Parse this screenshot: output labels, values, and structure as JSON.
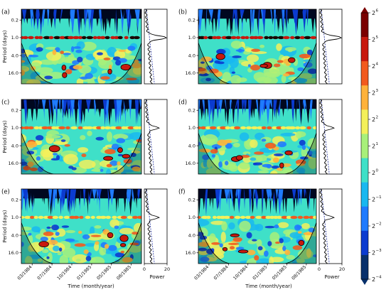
{
  "figure": {
    "ylabel": "Period (days)",
    "xlabel": "Time (month/year)",
    "side_xlabel": "Power"
  },
  "colormap": [
    "#08306b",
    "#0b3bd0",
    "#1f7bff",
    "#19b8f0",
    "#3fe0c8",
    "#a8f07a",
    "#f4f05a",
    "#ffb23a",
    "#f25a1e",
    "#c8190e",
    "#7a0000"
  ],
  "chart_data": [
    {
      "type": "heatmap",
      "panel": "(a)",
      "yticks": [
        "0.2",
        "1.0",
        "4.0",
        "16.0"
      ],
      "ylim_days": [
        0.1,
        30
      ],
      "xticks": [],
      "side": {
        "xticks": [],
        "xlim": [
          0,
          20
        ]
      }
    },
    {
      "type": "heatmap",
      "panel": "(b)",
      "yticks": [
        "0.2",
        "1.0",
        "4.0",
        "16.0"
      ],
      "ylim_days": [
        0.1,
        30
      ],
      "xticks": [],
      "side": {
        "xticks": [],
        "xlim": [
          0,
          20
        ]
      }
    },
    {
      "type": "heatmap",
      "panel": "(c)",
      "yticks": [
        "0.2",
        "1.0",
        "4.0",
        "16.0"
      ],
      "ylim_days": [
        0.1,
        30
      ],
      "xticks": [],
      "side": {
        "xticks": [],
        "xlim": [
          0,
          20
        ]
      }
    },
    {
      "type": "heatmap",
      "panel": "(d)",
      "yticks": [
        "0.2",
        "1.0",
        "4.0",
        "16.0"
      ],
      "ylim_days": [
        0.1,
        30
      ],
      "xticks": [],
      "side": {
        "xticks": [],
        "xlim": [
          0,
          20
        ]
      }
    },
    {
      "type": "heatmap",
      "panel": "(e)",
      "yticks": [
        "0.2",
        "1.0",
        "4.0",
        "16.0"
      ],
      "ylim_days": [
        0.1,
        30
      ],
      "xticks": [
        "03/1984",
        "07/1984",
        "10/1984",
        "01/1985",
        "05/1985",
        "08/1985"
      ],
      "side": {
        "xticks": [
          "0",
          "20"
        ],
        "xlim": [
          0,
          20
        ]
      }
    },
    {
      "type": "heatmap",
      "panel": "(f)",
      "yticks": [
        "0.2",
        "1.0",
        "4.0",
        "16.0"
      ],
      "ylim_days": [
        0.1,
        30
      ],
      "xticks": [
        "03/1984",
        "07/1984",
        "10/1984",
        "01/1985",
        "05/1985",
        "08/1985"
      ],
      "side": {
        "xticks": [
          "0",
          "20"
        ],
        "xlim": [
          0,
          20
        ]
      }
    },
    {
      "type": "colorbar",
      "ticks": [
        {
          "base": "2",
          "exp": "6"
        },
        {
          "base": "2",
          "exp": "5"
        },
        {
          "base": "2",
          "exp": "4"
        },
        {
          "base": "2",
          "exp": "3"
        },
        {
          "base": "2",
          "exp": "2"
        },
        {
          "base": "2",
          "exp": "1"
        },
        {
          "base": "2",
          "exp": "0"
        },
        {
          "base": "2",
          "exp": "−1"
        },
        {
          "base": "2",
          "exp": "−2"
        },
        {
          "base": "2",
          "exp": "−3"
        },
        {
          "base": "2",
          "exp": "−4"
        }
      ]
    }
  ]
}
